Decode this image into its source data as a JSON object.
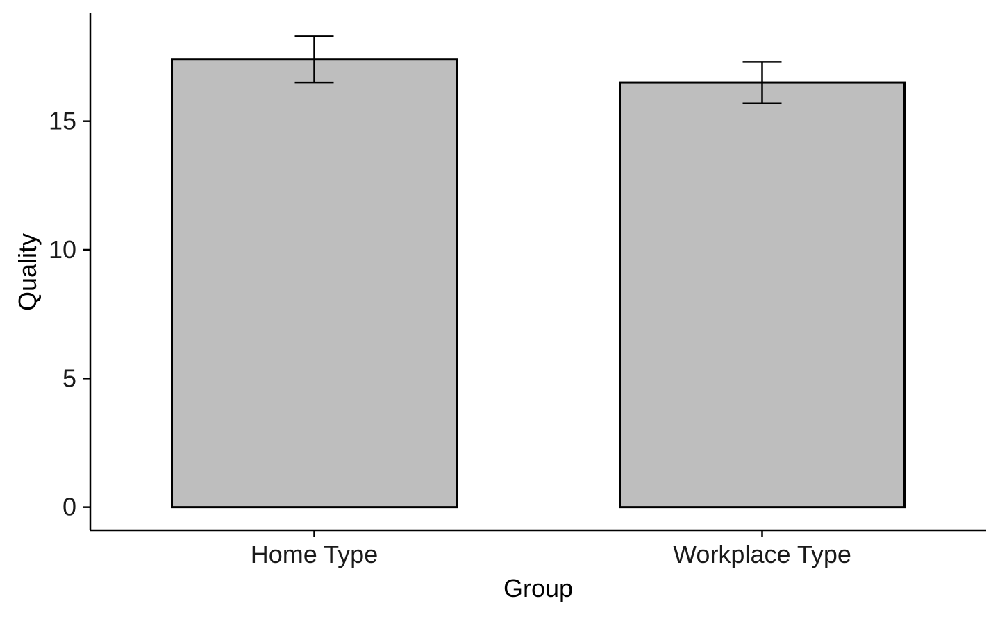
{
  "chart_data": {
    "type": "bar",
    "title": "",
    "xlabel": "Group",
    "ylabel": "Quality",
    "categories": [
      "Home Type",
      "Workplace Type"
    ],
    "values": [
      17.4,
      16.5
    ],
    "error_low": [
      16.5,
      15.7
    ],
    "error_high": [
      18.3,
      17.3
    ],
    "ylim": [
      -0.9,
      19.2
    ],
    "yticks": [
      0,
      5,
      10,
      15
    ],
    "grid": false,
    "bar_fill": "#bebebe",
    "bar_outline": "#000000"
  }
}
